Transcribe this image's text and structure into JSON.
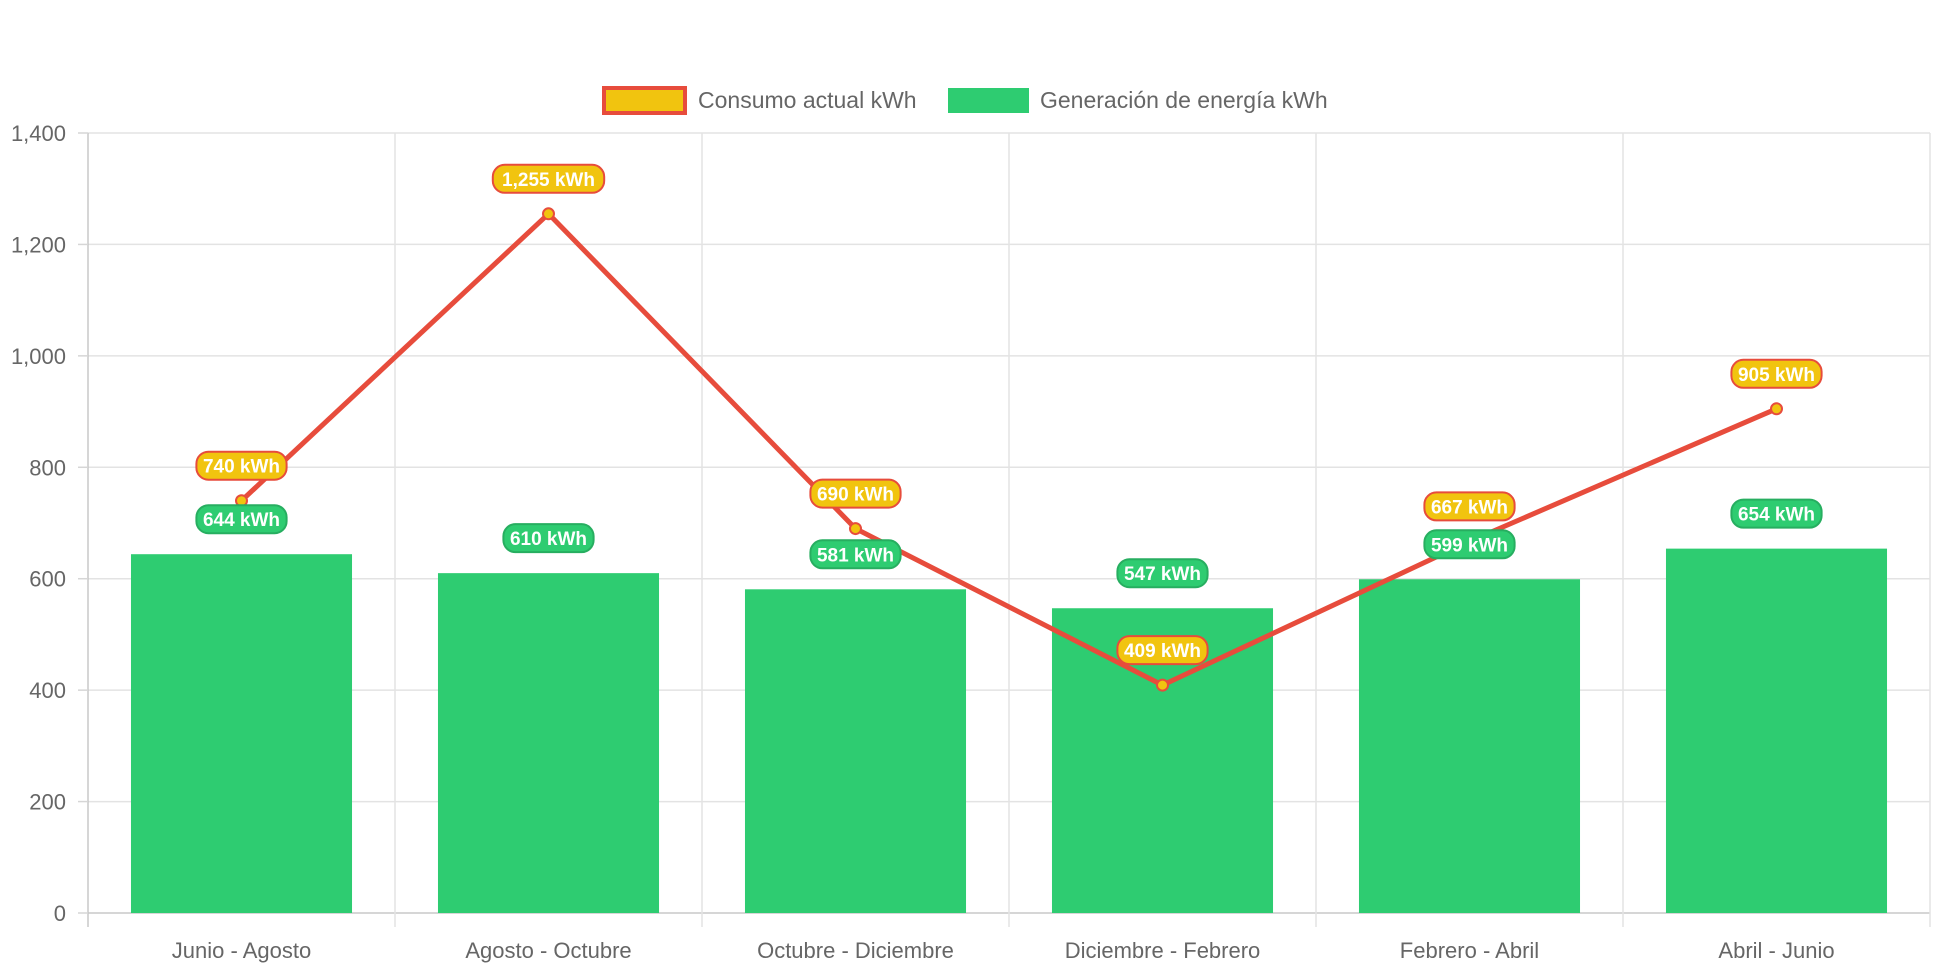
{
  "chart_data": {
    "type": "bar",
    "categories": [
      "Junio - Agosto",
      "Agosto - Octubre",
      "Octubre - Diciembre",
      "Diciembre - Febrero",
      "Febrero - Abril",
      "Abril - Junio"
    ],
    "series": [
      {
        "name": "Consumo actual kWh",
        "type": "line",
        "values": [
          740,
          1255,
          690,
          409,
          667,
          905
        ],
        "labels": [
          "740 kWh",
          "1,255 kWh",
          "690 kWh",
          "409 kWh",
          "667 kWh",
          "905 kWh"
        ],
        "color": "#e74c3c",
        "fill_color": "#f1c40f"
      },
      {
        "name": "Generación de energía kWh",
        "type": "bar",
        "values": [
          644,
          610,
          581,
          547,
          599,
          654
        ],
        "labels": [
          "644 kWh",
          "610 kWh",
          "581 kWh",
          "547 kWh",
          "599 kWh",
          "654 kWh"
        ],
        "color": "#2ecc71",
        "border_color": "#27ae60"
      }
    ],
    "y_ticks": [
      "0",
      "200",
      "400",
      "600",
      "800",
      "1,000",
      "1,200",
      "1,400"
    ],
    "ylim": [
      0,
      1400
    ],
    "grid": true,
    "legend_position": "top",
    "title": "",
    "xlabel": "",
    "ylabel": ""
  }
}
